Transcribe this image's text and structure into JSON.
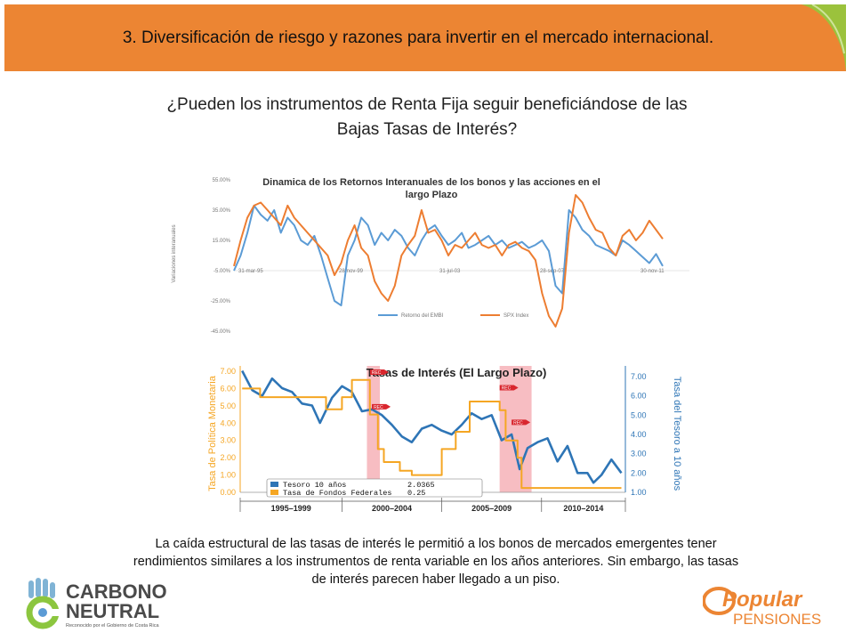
{
  "header": {
    "title": "3. Diversificación de riesgo y razones para invertir en el mercado internacional.",
    "accent_color": "#ec8533"
  },
  "subtitle": {
    "line1": "¿Pueden los instrumentos de Renta Fija seguir beneficiándose de las",
    "line2": "Bajas Tasas de Interés?"
  },
  "caption": {
    "line1": "La caída estructural de las tasas de interés le permitió a los bonos de mercados emergentes tener",
    "line2": "rendimientos similares a los instrumentos de renta variable en los años anteriores.  Sin embargo, las tasas",
    "line3": "de interés parecen haber llegado a un piso."
  },
  "logos": {
    "left_line1": "CARBONO",
    "left_line2": "NEUTRAL",
    "left_sub": "Reconocido por el Gobierno de Costa Rica",
    "right_line1": "Popular",
    "right_line2": "PENSIONES"
  },
  "chart_data": [
    {
      "type": "line",
      "title": "Dinamica de los Retornos Interanuales de los bonos y las acciones en el largo Plazo",
      "ylabel": "Variaciones interanuales",
      "ylim": [
        -45,
        55
      ],
      "y_ticks": [
        "55.00%",
        "35.00%",
        "15.00%",
        "-5.00%",
        "-25.00%",
        "-45.00%"
      ],
      "x_ticks": [
        "31-mar-95",
        "28-nov-99",
        "31-jul-03",
        "28-sep-07",
        "30-nov-11"
      ],
      "legend_position": "bottom",
      "grid": false,
      "series": [
        {
          "name": "Retorno del EMBI",
          "color": "#5b9bd5",
          "values": [
            -5,
            5,
            20,
            38,
            32,
            28,
            35,
            20,
            30,
            25,
            15,
            12,
            18,
            5,
            -10,
            -25,
            -28,
            5,
            15,
            30,
            25,
            12,
            20,
            15,
            22,
            18,
            10,
            5,
            15,
            22,
            25,
            18,
            12,
            15,
            20,
            10,
            12,
            15,
            18,
            12,
            15,
            10,
            12,
            14,
            10,
            12,
            15,
            8,
            -15,
            -20,
            35,
            30,
            22,
            18,
            12,
            10,
            8,
            5,
            15,
            12,
            8,
            4,
            0,
            6,
            -2
          ]
        },
        {
          "name": "SPX Index",
          "color": "#ed7d31",
          "values": [
            -2,
            15,
            30,
            38,
            40,
            35,
            30,
            25,
            38,
            30,
            25,
            20,
            15,
            10,
            5,
            -8,
            0,
            15,
            25,
            10,
            5,
            -12,
            -20,
            -25,
            -15,
            5,
            12,
            18,
            35,
            20,
            22,
            15,
            5,
            12,
            10,
            15,
            20,
            12,
            10,
            12,
            5,
            12,
            14,
            10,
            8,
            2,
            -20,
            -35,
            -42,
            -30,
            20,
            45,
            40,
            30,
            22,
            20,
            10,
            5,
            18,
            22,
            15,
            20,
            28,
            22,
            16
          ]
        }
      ]
    },
    {
      "type": "line",
      "title": "Tasas de Interés (El Largo Plazo)",
      "ylabel_left": "Tasa de Política Monetaria",
      "ylabel_right": "Tasa del Tesoro a 10 años",
      "left_ticks": [
        "7.00",
        "6.00",
        "5.00",
        "4.00",
        "3.00",
        "2.00",
        "1.00",
        "0.00"
      ],
      "right_ticks": [
        "7.00",
        "6.00",
        "5.00",
        "4.00",
        "3.00",
        "2.00",
        "1.00"
      ],
      "ylim_left": [
        0,
        7
      ],
      "ylim_right": [
        1,
        7
      ],
      "period_labels": [
        "1995–1999",
        "2000–2004",
        "2005–2009",
        "2010–2014"
      ],
      "recession_label": "REC",
      "recession_bands": [
        [
          2001.25,
          2001.9
        ],
        [
          2007.9,
          2009.5
        ]
      ],
      "x_range": [
        1994.9,
        2014.2
      ],
      "legend_position": "bottom-left",
      "series": [
        {
          "name": "Tesoro 10 años",
          "legend_value": "2.0365",
          "color": "#2e75b6",
          "axis": "right",
          "x": [
            1995.0,
            1995.5,
            1996.0,
            1996.5,
            1997.0,
            1997.5,
            1998.0,
            1998.5,
            1998.9,
            1999.5,
            2000.0,
            2000.5,
            2001.0,
            2001.5,
            2002.0,
            2002.5,
            2003.0,
            2003.5,
            2004.0,
            2004.5,
            2005.0,
            2005.5,
            2006.0,
            2006.5,
            2007.0,
            2007.5,
            2008.0,
            2008.5,
            2008.9,
            2009.3,
            2009.8,
            2010.3,
            2010.8,
            2011.3,
            2011.8,
            2012.3,
            2012.6,
            2013.0,
            2013.5,
            2014.0
          ],
          "values": [
            7.5,
            6.3,
            6.0,
            6.9,
            6.4,
            6.2,
            5.6,
            5.5,
            4.6,
            5.9,
            6.5,
            6.2,
            5.2,
            5.3,
            5.0,
            4.5,
            3.9,
            3.6,
            4.3,
            4.5,
            4.2,
            4.0,
            4.5,
            5.1,
            4.8,
            5.0,
            3.7,
            4.0,
            2.2,
            3.3,
            3.6,
            3.8,
            2.6,
            3.4,
            2.0,
            2.0,
            1.5,
            1.9,
            2.7,
            2.0
          ]
        },
        {
          "name": "Tasa de Fondos Federales",
          "legend_value": "0.25",
          "color": "#f5a623",
          "axis": "left",
          "x": [
            1995.0,
            1995.9,
            1998.6,
            1999.2,
            2000.0,
            2000.5,
            2001.0,
            2001.4,
            2001.8,
            2002.1,
            2002.9,
            2003.5,
            2004.5,
            2005.0,
            2005.7,
            2006.4,
            2007.6,
            2007.9,
            2008.2,
            2008.8,
            2009.0,
            2014.0
          ],
          "values": [
            6.0,
            5.5,
            5.5,
            4.8,
            5.5,
            6.5,
            6.5,
            4.5,
            2.5,
            1.75,
            1.25,
            1.0,
            1.0,
            2.5,
            3.5,
            5.25,
            5.25,
            4.75,
            3.0,
            2.0,
            0.25,
            0.25
          ]
        }
      ]
    }
  ]
}
